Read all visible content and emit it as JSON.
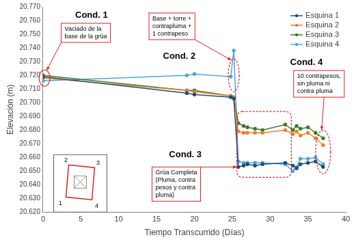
{
  "chart_data": {
    "type": "line",
    "x_label": "Tiempo Transcurrido (Días)",
    "y_label": "Elevación (m)",
    "x": [
      0,
      19,
      20,
      24.8,
      25.2,
      25.8,
      26.5,
      27,
      28,
      29,
      32,
      33,
      33.5,
      34,
      35,
      36,
      37
    ],
    "series": [
      {
        "name": "Esquina 1",
        "color": "#1f4e79",
        "values": [
          20.719,
          20.707,
          20.706,
          20.704,
          20.703,
          20.653,
          20.654,
          20.655,
          20.654,
          20.655,
          20.656,
          20.654,
          20.652,
          20.655,
          20.656,
          20.657,
          20.653
        ]
      },
      {
        "name": "Esquina 2",
        "color": "#ed7d31",
        "values": [
          20.718,
          20.709,
          20.708,
          20.705,
          20.704,
          20.679,
          20.678,
          20.678,
          20.678,
          20.678,
          20.68,
          20.677,
          20.679,
          20.676,
          20.678,
          20.674,
          20.669
        ]
      },
      {
        "name": "Esquina 3",
        "color": "#3a7d22",
        "values": [
          20.72,
          20.709,
          20.709,
          20.705,
          20.704,
          20.685,
          20.683,
          20.682,
          20.681,
          20.68,
          20.684,
          20.68,
          20.683,
          20.681,
          20.682,
          20.678,
          20.674
        ]
      },
      {
        "name": "Esquina 4",
        "color": "#4ea6dc",
        "values": [
          20.716,
          20.72,
          20.721,
          20.719,
          20.738,
          20.657,
          20.656,
          20.656,
          20.656,
          20.656,
          20.655,
          20.65,
          20.653,
          20.659,
          20.659,
          20.66,
          20.655
        ]
      }
    ],
    "xlim": [
      0,
      40
    ],
    "xticks": [
      0,
      5,
      10,
      15,
      20,
      25,
      30,
      35,
      40
    ],
    "ylim": [
      20.62,
      20.77
    ],
    "yticks": [
      {
        "value": 20.62,
        "label": "20.620"
      },
      {
        "value": 20.63,
        "label": "20.630"
      },
      {
        "value": 20.64,
        "label": "20.640"
      },
      {
        "value": 20.65,
        "label": "20.650"
      },
      {
        "value": 20.66,
        "label": "20.660"
      },
      {
        "value": 20.67,
        "label": "20.670"
      },
      {
        "value": 20.68,
        "label": "20.680"
      },
      {
        "value": 20.69,
        "label": "20.690"
      },
      {
        "value": 20.7,
        "label": "20.700"
      },
      {
        "value": 20.71,
        "label": "20.710"
      },
      {
        "value": 20.72,
        "label": "20.720"
      },
      {
        "value": 20.73,
        "label": "20.730"
      },
      {
        "value": 20.74,
        "label": "20.740"
      },
      {
        "value": 20.75,
        "label": "20.750"
      },
      {
        "value": 20.76,
        "label": "20.760"
      },
      {
        "value": 20.77,
        "label": "20.770"
      }
    ],
    "grid": false,
    "legend": "upper right",
    "marker": "circle",
    "line_style": "solid",
    "annotations": [
      {
        "title": "Cond. 1",
        "note": [
          "Vaciado de la",
          "base de la grúa"
        ]
      },
      {
        "title": "Cond. 2",
        "note": [
          "Base + torre +",
          "contrapluma +",
          "1 contrapeso"
        ]
      },
      {
        "title": "Cond. 3",
        "note": [
          "Grúa Completa",
          "(Pluma, contra",
          "pesos y contra",
          "pluma)"
        ]
      },
      {
        "title": "Cond. 4",
        "note": [
          "10 contrapesos,",
          "sin pluma ni",
          "contra pluma"
        ]
      }
    ],
    "inset_labels": [
      "1",
      "2",
      "3",
      "4"
    ]
  }
}
